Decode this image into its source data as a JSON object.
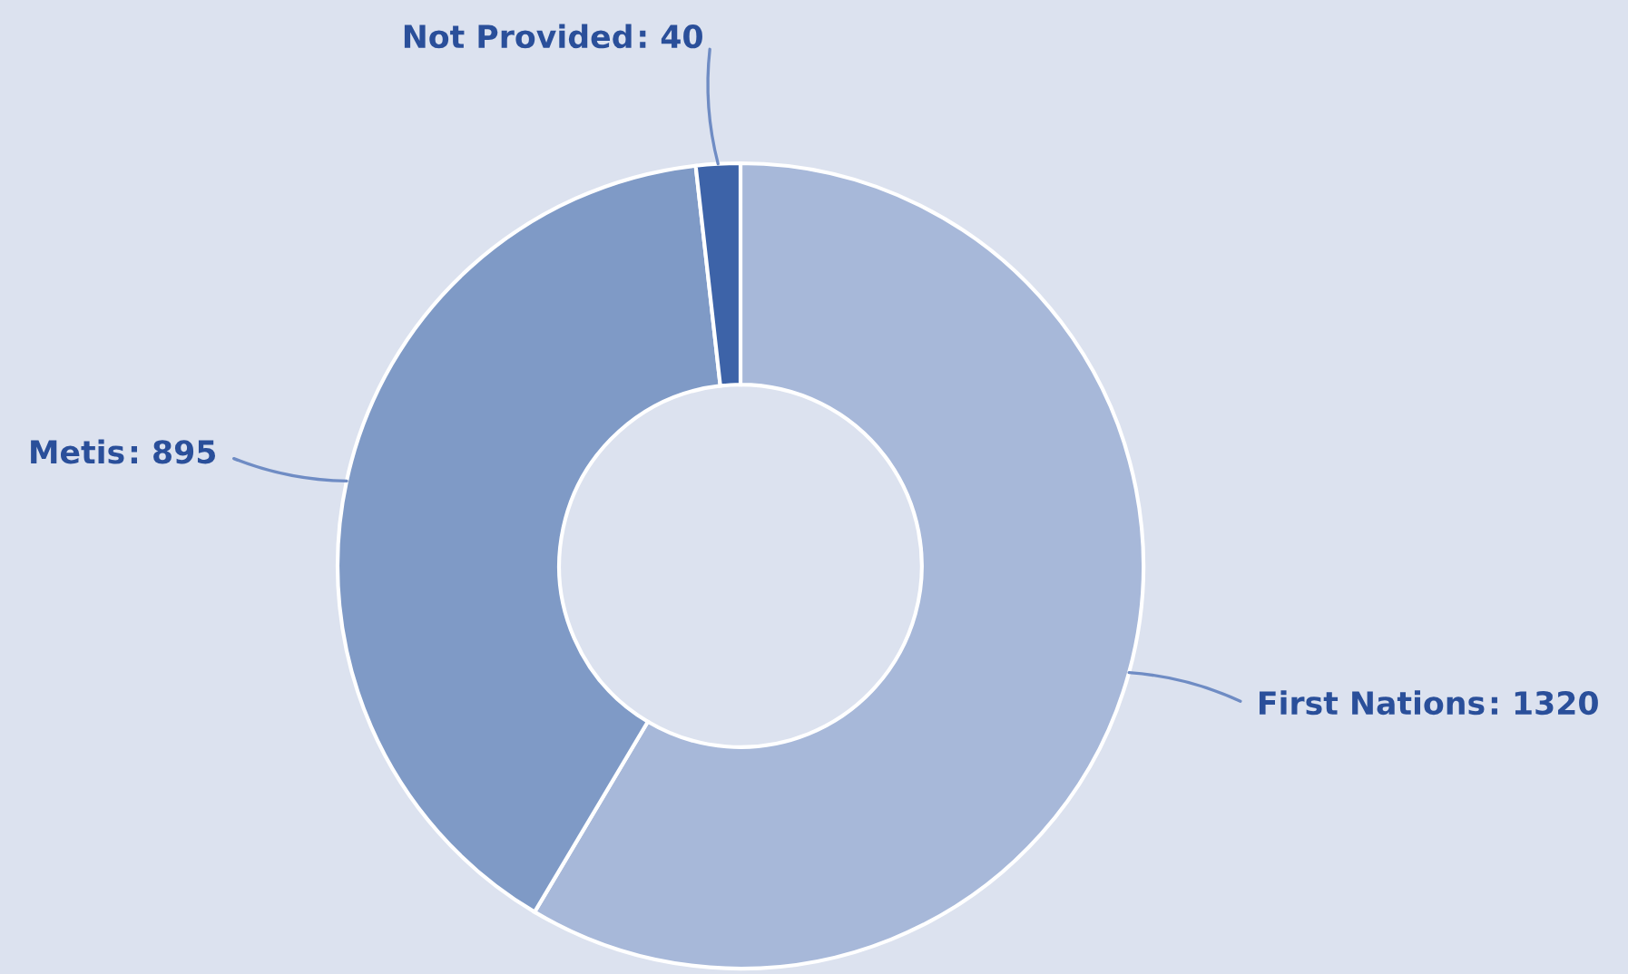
{
  "chart_data": {
    "type": "donut",
    "categories": [
      "First Nations",
      "Metis",
      "Not Provided"
    ],
    "values": [
      1320,
      895,
      40
    ],
    "value_labels": [
      ": 1320",
      ": 895",
      ": 40"
    ],
    "colors": [
      "#a7b8d9",
      "#7f9ac6",
      "#3d63a8"
    ],
    "legend": false
  }
}
